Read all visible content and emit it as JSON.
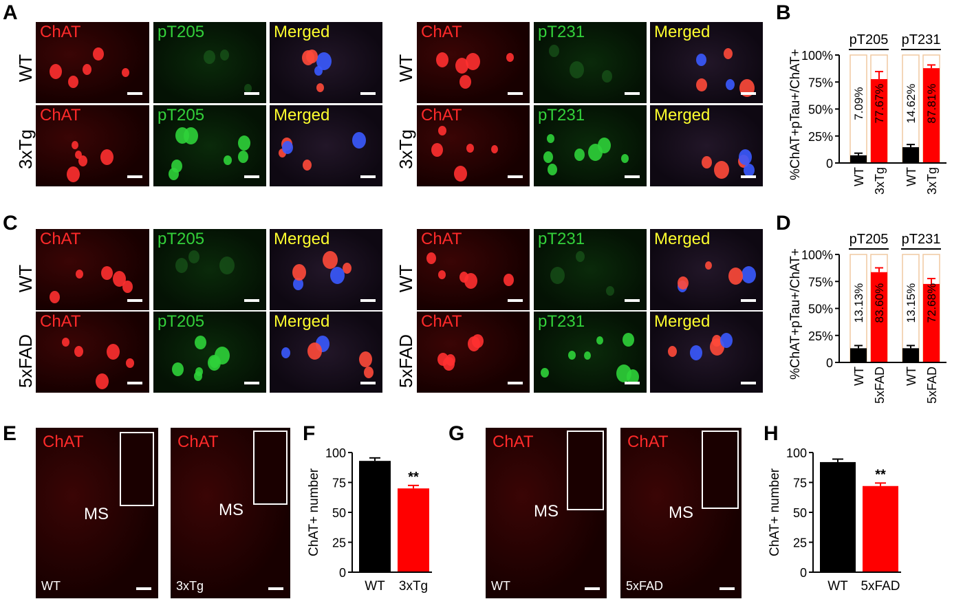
{
  "letters": [
    "A",
    "B",
    "C",
    "D",
    "E",
    "F",
    "G",
    "H"
  ],
  "row_labels": {
    "wt": "WT",
    "tg3x": "3xTg",
    "fad5x": "5xFAD"
  },
  "channels": {
    "chat": "ChAT",
    "pt205": "pT205",
    "pt231": "pT231",
    "merged": "Merged"
  },
  "ms_label": "MS",
  "colors": {
    "red_channel": "#ff2a2a",
    "green_channel": "#33d13a",
    "merged_text": "#ffff2e",
    "wt_bar": "#000000",
    "tg_bar": "#ff0000",
    "box_outline": "#f0c8a0"
  },
  "chart_data": [
    {
      "id": "B",
      "type": "bar",
      "ylabel": "%ChAT+pTau+/ChAT+",
      "yticks": [
        "0",
        "25%",
        "50%",
        "75%",
        "100%"
      ],
      "ylim": [
        0,
        100
      ],
      "groups": [
        {
          "name": "pT205",
          "categories": [
            "WT",
            "3xTg"
          ],
          "values": [
            7.09,
            77.67
          ],
          "labels": [
            "7.09%",
            "77.67%"
          ],
          "errors": [
            2,
            7
          ]
        },
        {
          "name": "pT231",
          "categories": [
            "WT",
            "3xTg"
          ],
          "values": [
            14.62,
            87.81
          ],
          "labels": [
            "14.62%",
            "87.81%"
          ],
          "errors": [
            2.5,
            3
          ]
        }
      ]
    },
    {
      "id": "D",
      "type": "bar",
      "ylabel": "%ChAT+pTau+/ChAT+",
      "yticks": [
        "0",
        "25%",
        "50%",
        "75%",
        "100%"
      ],
      "ylim": [
        0,
        100
      ],
      "groups": [
        {
          "name": "pT205",
          "categories": [
            "WT",
            "5xFAD"
          ],
          "values": [
            13.13,
            83.6
          ],
          "labels": [
            "13.13%",
            "83.60%"
          ],
          "errors": [
            2.5,
            4
          ]
        },
        {
          "name": "pT231",
          "categories": [
            "WT",
            "5xFAD"
          ],
          "values": [
            13.15,
            72.68
          ],
          "labels": [
            "13.15%",
            "72.68%"
          ],
          "errors": [
            2.5,
            5
          ]
        }
      ]
    },
    {
      "id": "F",
      "type": "bar",
      "ylabel": "ChAT+ number",
      "yticks": [
        "0",
        "25",
        "50",
        "75",
        "100"
      ],
      "ylim": [
        0,
        100
      ],
      "categories": [
        "WT",
        "3xTg"
      ],
      "values": [
        93,
        70
      ],
      "errors": [
        2.5,
        2.5
      ],
      "significance": "**"
    },
    {
      "id": "H",
      "type": "bar",
      "ylabel": "ChAT+ number",
      "yticks": [
        "0",
        "25",
        "50",
        "75",
        "100"
      ],
      "ylim": [
        0,
        100
      ],
      "categories": [
        "WT",
        "5xFAD"
      ],
      "values": [
        92,
        72
      ],
      "errors": [
        2.5,
        2.5
      ],
      "significance": "**"
    }
  ]
}
